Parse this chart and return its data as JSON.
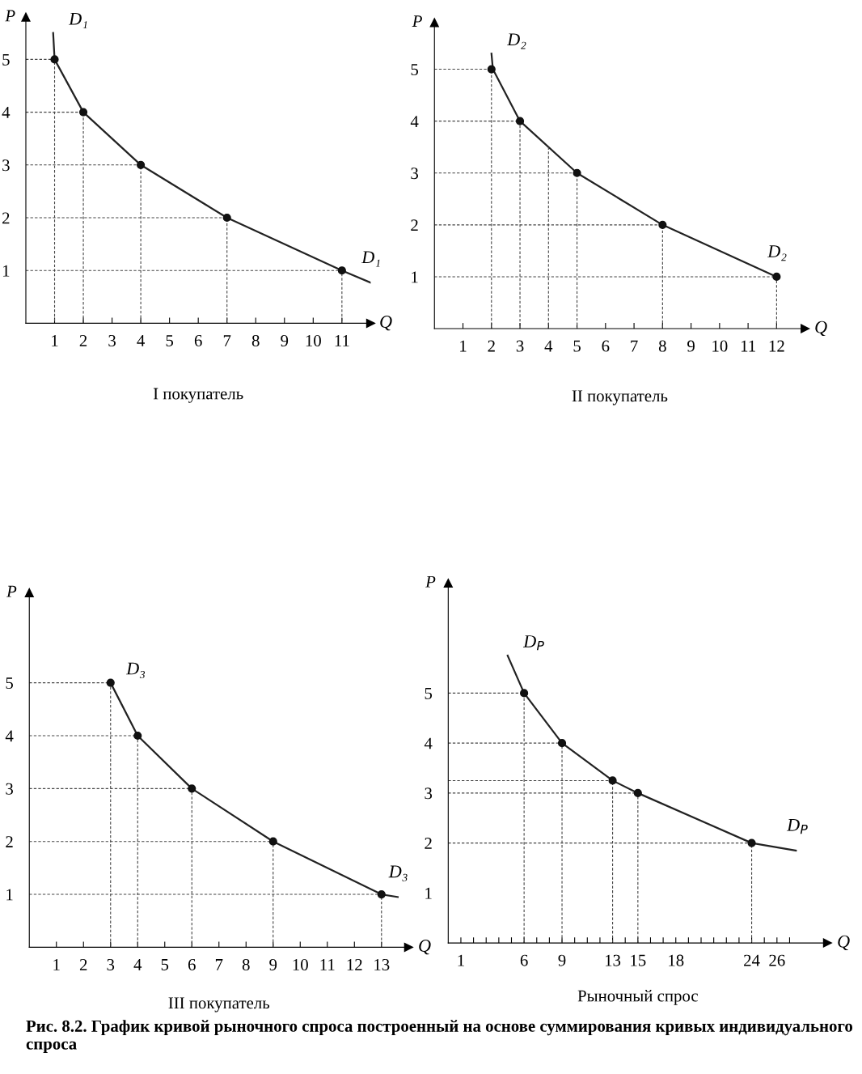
{
  "chart_data": [
    {
      "type": "line",
      "title": "I покупатель",
      "xlabel": "Q",
      "ylabel": "P",
      "xlim": [
        0,
        12
      ],
      "ylim": [
        0,
        5.8
      ],
      "xticks": [
        1,
        2,
        3,
        4,
        5,
        6,
        7,
        8,
        9,
        10,
        11
      ],
      "yticks": [
        1,
        2,
        3,
        4,
        5
      ],
      "series": [
        {
          "color": "#222222",
          "x": [
            0.95,
            1,
            2,
            4,
            7,
            11,
            12
          ],
          "values": [
            5.5,
            5,
            4,
            3,
            2,
            1,
            0.77
          ]
        },
        {
          "type": "scatter",
          "color": "#111111",
          "marker": "circle",
          "x": [
            1,
            2,
            4,
            7,
            11
          ],
          "values": [
            5,
            4,
            3,
            2,
            1
          ]
        },
        {
          "color": "#444444",
          "line_style": "dashed",
          "x": [
            0,
            1,
            1
          ],
          "values": [
            5,
            5,
            0
          ]
        },
        {
          "color": "#444444",
          "line_style": "dashed",
          "x": [
            0,
            2,
            2
          ],
          "values": [
            4,
            4,
            0
          ]
        },
        {
          "color": "#444444",
          "line_style": "dashed",
          "x": [
            0,
            4,
            4
          ],
          "values": [
            3,
            3,
            0
          ]
        },
        {
          "color": "#444444",
          "line_style": "dashed",
          "x": [
            0,
            7,
            7
          ],
          "values": [
            2,
            2,
            0
          ]
        },
        {
          "color": "#444444",
          "line_style": "dashed",
          "x": [
            0,
            11,
            11
          ],
          "values": [
            1,
            1,
            0
          ]
        }
      ],
      "annotations": [
        "D₁",
        "D₁"
      ]
    },
    {
      "type": "line",
      "title": "II покупатель",
      "xlabel": "Q",
      "ylabel": "P",
      "xlim": [
        0,
        13
      ],
      "ylim": [
        0,
        5.9
      ],
      "xticks": [
        1,
        2,
        3,
        4,
        5,
        6,
        7,
        8,
        9,
        10,
        11,
        12
      ],
      "yticks": [
        1,
        2,
        3,
        4,
        5
      ],
      "series": [
        {
          "color": "#222222",
          "x": [
            2,
            2.05,
            3,
            5,
            8,
            12
          ],
          "values": [
            5.3,
            5,
            4,
            3,
            2,
            1
          ]
        },
        {
          "type": "scatter",
          "color": "#111111",
          "marker": "circle",
          "x": [
            2,
            3,
            5,
            8,
            12
          ],
          "values": [
            5,
            4,
            3,
            2,
            1
          ]
        },
        {
          "color": "#444444",
          "line_style": "dashed",
          "x": [
            0,
            2,
            2
          ],
          "values": [
            5,
            5,
            0
          ]
        },
        {
          "color": "#444444",
          "line_style": "dashed",
          "x": [
            0,
            3,
            3
          ],
          "values": [
            4,
            4,
            0
          ]
        },
        {
          "color": "#444444",
          "line_style": "dashed",
          "x": [
            4,
            4
          ],
          "values": [
            3.5,
            0
          ]
        },
        {
          "color": "#444444",
          "line_style": "dashed",
          "x": [
            0,
            5,
            5
          ],
          "values": [
            3,
            3,
            0
          ]
        },
        {
          "color": "#444444",
          "line_style": "dashed",
          "x": [
            0,
            8,
            8
          ],
          "values": [
            2,
            2,
            0
          ]
        },
        {
          "color": "#444444",
          "line_style": "dashed",
          "x": [
            0,
            12,
            12
          ],
          "values": [
            1,
            1,
            0
          ]
        }
      ],
      "annotations": [
        "D₂",
        "D₂"
      ]
    },
    {
      "type": "line",
      "title": "III покупатель",
      "xlabel": "Q",
      "ylabel": "P",
      "xlim": [
        0,
        14
      ],
      "ylim": [
        0,
        6.7
      ],
      "xticks": [
        1,
        2,
        3,
        4,
        5,
        6,
        7,
        8,
        9,
        10,
        11,
        12,
        13
      ],
      "yticks": [
        1,
        2,
        3,
        4,
        5
      ],
      "series": [
        {
          "color": "#222222",
          "x": [
            3,
            4,
            6,
            9,
            13,
            13.6
          ],
          "values": [
            5,
            4,
            3,
            2,
            1,
            0.95
          ]
        },
        {
          "type": "scatter",
          "color": "#111111",
          "marker": "circle",
          "x": [
            3,
            4,
            6,
            9,
            13
          ],
          "values": [
            5,
            4,
            3,
            2,
            1
          ]
        },
        {
          "color": "#444444",
          "line_style": "dashed",
          "x": [
            0,
            3,
            3
          ],
          "values": [
            5,
            5,
            0
          ]
        },
        {
          "color": "#444444",
          "line_style": "dashed",
          "x": [
            0,
            4,
            4
          ],
          "values": [
            4,
            4,
            0
          ]
        },
        {
          "color": "#444444",
          "line_style": "dashed",
          "x": [
            0,
            6,
            6
          ],
          "values": [
            3,
            3,
            0
          ]
        },
        {
          "color": "#444444",
          "line_style": "dashed",
          "x": [
            0,
            9,
            9
          ],
          "values": [
            2,
            2,
            0
          ]
        },
        {
          "color": "#444444",
          "line_style": "dashed",
          "x": [
            0,
            13,
            13
          ],
          "values": [
            1,
            1,
            0
          ]
        }
      ],
      "annotations": [
        "D₃",
        "D₃"
      ]
    },
    {
      "type": "line",
      "title": "Рыночный спрос",
      "xlabel": "Q",
      "ylabel": "P",
      "xlim": [
        0,
        30
      ],
      "ylim": [
        0,
        7.2
      ],
      "xticks": [
        1,
        {
          "value": 2,
          "label": null
        },
        {
          "value": 3,
          "label": null
        },
        {
          "value": 4,
          "label": null
        },
        {
          "value": 5,
          "label": null
        },
        6,
        {
          "value": 7,
          "label": null
        },
        {
          "value": 8,
          "label": null
        },
        9,
        {
          "value": 10,
          "label": null
        },
        {
          "value": 11,
          "label": null
        },
        {
          "value": 12,
          "label": null
        },
        13,
        {
          "value": 14,
          "label": null
        },
        15,
        {
          "value": 16,
          "label": null
        },
        {
          "value": 17,
          "label": null
        },
        18,
        {
          "value": 19,
          "label": null
        },
        {
          "value": 20,
          "label": null
        },
        {
          "value": 21,
          "label": null
        },
        {
          "value": 22,
          "label": null
        },
        {
          "value": 23,
          "label": null
        },
        24,
        {
          "value": 25,
          "label": null
        },
        26,
        {
          "value": 27,
          "label": null
        }
      ],
      "yticks": [
        1,
        2,
        3,
        4,
        5
      ],
      "series": [
        {
          "color": "#222222",
          "x": [
            4.7,
            6,
            9,
            13,
            15,
            24,
            27.5
          ],
          "values": [
            5.75,
            5,
            4,
            3.25,
            3,
            2,
            1.85
          ]
        },
        {
          "type": "scatter",
          "color": "#111111",
          "marker": "circle",
          "x": [
            6,
            9,
            13,
            15,
            24
          ],
          "values": [
            5,
            4,
            3.25,
            3,
            2
          ]
        },
        {
          "color": "#444444",
          "line_style": "dashed",
          "x": [
            0,
            6,
            6
          ],
          "values": [
            5,
            5,
            0
          ]
        },
        {
          "color": "#444444",
          "line_style": "dashed",
          "x": [
            0,
            9,
            9
          ],
          "values": [
            4,
            4,
            0
          ]
        },
        {
          "color": "#444444",
          "line_style": "dashed",
          "x": [
            0,
            13,
            13
          ],
          "values": [
            3.25,
            3.25,
            0
          ]
        },
        {
          "color": "#444444",
          "line_style": "dashed",
          "x": [
            0,
            15,
            15
          ],
          "values": [
            3,
            3,
            0
          ]
        },
        {
          "color": "#444444",
          "line_style": "dashed",
          "x": [
            0,
            24,
            24
          ],
          "values": [
            2,
            2,
            0
          ]
        }
      ],
      "annotations": [
        "D$_{P}$",
        "D$_{P}$",
        "Рис. 8.2. График кривой рыночного спроса построенный на основе суммирования кривых индивидуального спроса"
      ]
    }
  ]
}
